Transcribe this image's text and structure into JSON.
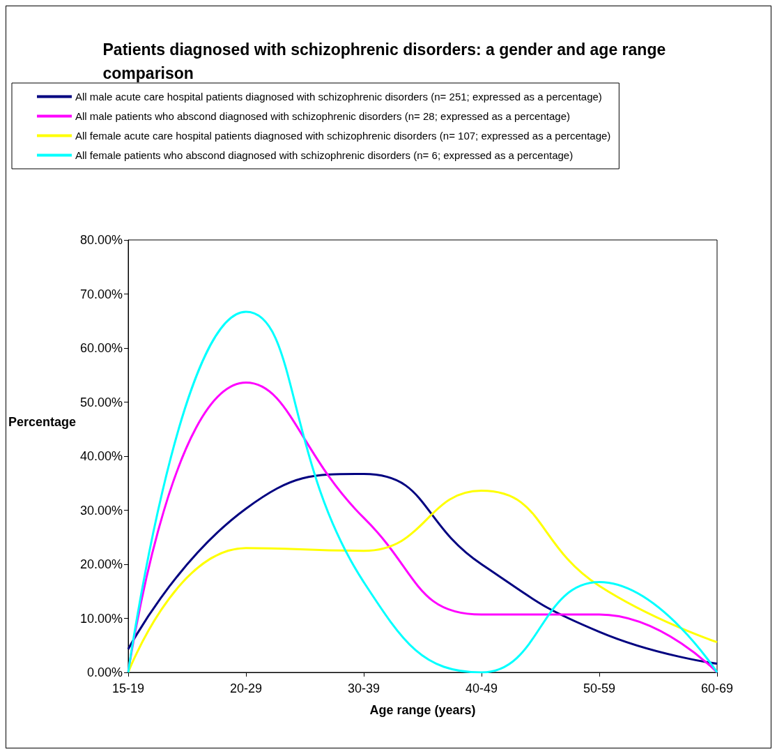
{
  "chart_data": {
    "type": "line",
    "title": "Patients diagnosed with schizophrenic disorders: a gender and age range comparison",
    "xlabel": "Age range (years)",
    "ylabel": "Percentage",
    "categories": [
      "15-19",
      "20-29",
      "30-39",
      "40-49",
      "50-59",
      "60-69"
    ],
    "series": [
      {
        "name": "All male acute care hospital patients diagnosed with schizophrenic disorders (n= 251; expressed as a percentage)",
        "color": "#000080",
        "values": [
          4.3,
          30.3,
          36.7,
          20.0,
          7.5,
          1.6
        ]
      },
      {
        "name": "All male patients who abscond diagnosed with schizophrenic disorders (n= 28; expressed as a percentage)",
        "color": "#ff00ff",
        "values": [
          0,
          53.6,
          28.6,
          10.7,
          10.7,
          0
        ]
      },
      {
        "name": "All female acute care hospital patients diagnosed with schizophrenic disorders (n= 107; expressed as a percentage)",
        "color": "#ffff00",
        "values": [
          0,
          23.0,
          22.5,
          33.6,
          16.0,
          5.6
        ]
      },
      {
        "name": "All female patients who abscond diagnosed with schizophrenic disorders (n= 6; expressed as a percentage)",
        "color": "#00ffff",
        "values": [
          0,
          66.7,
          16.7,
          0,
          16.7,
          0
        ]
      }
    ],
    "ylim": [
      0,
      80
    ],
    "yticks": [
      {
        "value": 0,
        "label": "0.00%"
      },
      {
        "value": 10,
        "label": "10.00%"
      },
      {
        "value": 20,
        "label": "20.00%"
      },
      {
        "value": 30,
        "label": "30.00%"
      },
      {
        "value": 40,
        "label": "40.00%"
      },
      {
        "value": 50,
        "label": "50.00%"
      },
      {
        "value": 60,
        "label": "60.00%"
      },
      {
        "value": 70,
        "label": "70.00%"
      },
      {
        "value": 80,
        "label": "80.00%"
      }
    ],
    "grid": false,
    "legend": "top",
    "marker": "none",
    "line_style": "solid"
  }
}
